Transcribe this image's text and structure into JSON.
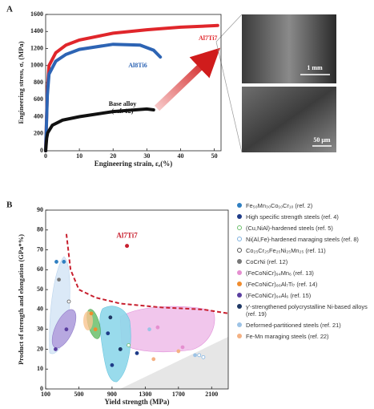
{
  "chart_data": [
    {
      "type": "line",
      "panel_label": "A",
      "x_label": "Engineering strain, εₑ(%)",
      "y_label": "Engineering stress, σₑ (MPa)",
      "xlim": [
        0,
        52
      ],
      "ylim": [
        0,
        1600
      ],
      "xticks": [
        0,
        10,
        20,
        30,
        40,
        50
      ],
      "yticks": [
        0,
        200,
        400,
        600,
        800,
        1000,
        1200,
        1400,
        1600
      ],
      "series": [
        {
          "name": "Al7Ti7",
          "color": "#e0262b",
          "x": [
            0,
            0.5,
            1,
            3,
            6,
            10,
            20,
            30,
            40,
            50,
            51
          ],
          "values": [
            0,
            700,
            1000,
            1150,
            1240,
            1300,
            1380,
            1420,
            1450,
            1468,
            1470
          ]
        },
        {
          "name": "Al8Ti6",
          "color": "#2d64b4",
          "x": [
            0,
            0.5,
            1,
            3,
            6,
            10,
            20,
            28,
            32,
            34
          ],
          "values": [
            0,
            650,
            900,
            1050,
            1130,
            1190,
            1250,
            1240,
            1180,
            1100
          ]
        },
        {
          "name": "Base alloy (ref. 12)",
          "color": "#111111",
          "x": [
            0,
            0.3,
            0.6,
            2,
            5,
            10,
            20,
            30,
            32
          ],
          "values": [
            0,
            150,
            210,
            300,
            360,
            400,
            460,
            490,
            480
          ]
        }
      ],
      "image_scale_labels": [
        "1 mm",
        "50 μm"
      ]
    },
    {
      "type": "scatter",
      "panel_label": "B",
      "x_label": "Yield strength (MPa)",
      "y_label": "Product of strength and elongation (GPa*%)",
      "xlim": [
        100,
        2300
      ],
      "ylim": [
        0,
        90
      ],
      "xticks": [
        100,
        500,
        900,
        1300,
        1700,
        2100
      ],
      "yticks": [
        0,
        10,
        20,
        30,
        40,
        50,
        60,
        70,
        80,
        90
      ],
      "boundary": {
        "color": "#c8202f",
        "x": [
          350,
          400,
          500,
          700,
          1000,
          1500,
          2000,
          2300
        ],
        "values": [
          78,
          60,
          50,
          46,
          43,
          41,
          40,
          38
        ]
      },
      "highlight": {
        "label": "Al7Ti7",
        "color": "#c8202f",
        "x": 1080,
        "y": 72
      },
      "series": [
        {
          "name": "Fe₅₀Mn₃₀Co₁₀Cr₁₀ (ref. 2)",
          "color": "#2f7fc1",
          "hollow": false,
          "x": [
            230,
            320
          ],
          "values": [
            64,
            64
          ]
        },
        {
          "name": "High specific strength steels (ref. 4)",
          "color": "#1f3c88",
          "hollow": false,
          "x": [
            850,
            1000,
            1200,
            900
          ],
          "values": [
            28,
            20,
            18,
            12
          ]
        },
        {
          "name": "(Cu,NiAl)-hardened steels (ref. 5)",
          "color": "#6cc06c",
          "hollow": true,
          "x": [
            1100
          ],
          "values": [
            22
          ]
        },
        {
          "name": "Ni(Al,Fe)-hardened maraging steels (ref. 8)",
          "color": "#7fb2e0",
          "hollow": true,
          "x": [
            1950,
            2000
          ],
          "values": [
            17,
            16
          ]
        },
        {
          "name": "Co₂₅Cr₂₅Fe₂₅Ni₂₅Mn₂₅ (ref. 11)",
          "color": "#555555",
          "hollow": true,
          "x": [
            380
          ],
          "values": [
            44
          ]
        },
        {
          "name": "CoCrNi (ref. 12)",
          "color": "#777777",
          "hollow": false,
          "x": [
            260
          ],
          "values": [
            55
          ]
        },
        {
          "name": "(FeCoNiCr)₉₄Mn₆ (ref. 13)",
          "color": "#e58fd0",
          "hollow": false,
          "x": [
            1450,
            1750
          ],
          "values": [
            31,
            21
          ]
        },
        {
          "name": "(FeCoNiCr)₈₆Al₇Ti₇ (ref. 14)",
          "color": "#f08c2e",
          "hollow": false,
          "x": [
            650,
            700
          ],
          "values": [
            38,
            30
          ]
        },
        {
          "name": "(FeCoNiCr)₉₄Al₆ (ref. 15)",
          "color": "#5a3fa0",
          "hollow": false,
          "x": [
            220,
            350
          ],
          "values": [
            20,
            30
          ]
        },
        {
          "name": "γ'-strengthened polycrystalline Ni-based alloys (ref. 19)",
          "color": "#1f3864",
          "hollow": false,
          "x": [
            880,
            1000
          ],
          "values": [
            36,
            20
          ]
        },
        {
          "name": "Deformed-partitioned steels (ref. 21)",
          "color": "#9dc3e6",
          "hollow": false,
          "x": [
            1350,
            1900
          ],
          "values": [
            30,
            17
          ]
        },
        {
          "name": "Fe-Mn maraging steels (ref. 22)",
          "color": "#f4b183",
          "hollow": false,
          "x": [
            1400,
            1700
          ],
          "values": [
            15,
            19
          ]
        }
      ]
    }
  ]
}
